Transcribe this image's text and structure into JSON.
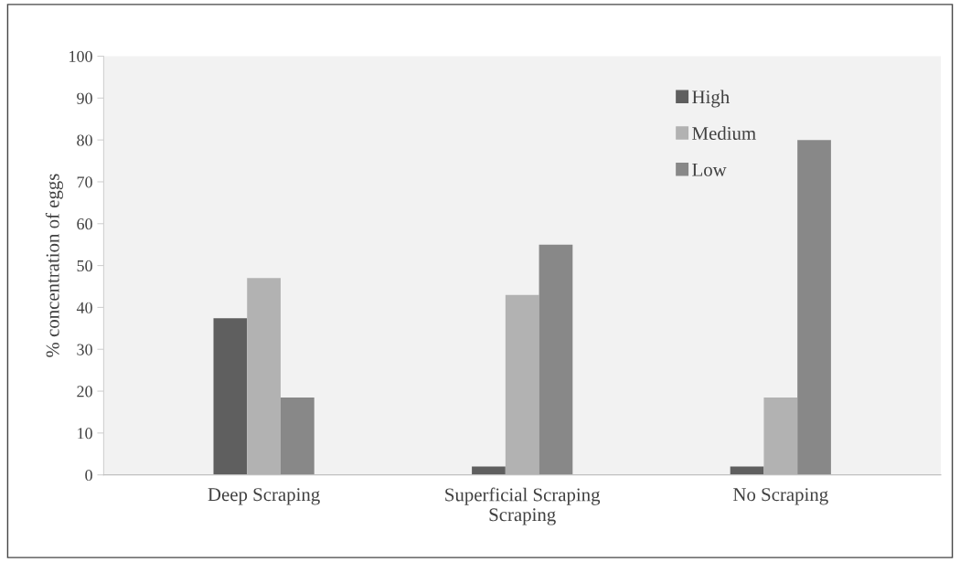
{
  "chart_data": {
    "type": "bar",
    "ylabel": "% concentration of eggs",
    "categories": [
      "Deep Scraping",
      "Superficial Scraping\nScraping",
      "No Scraping"
    ],
    "series": [
      {
        "name": "High",
        "color": "#5f5f5f",
        "values": [
          37.4,
          2,
          2
        ]
      },
      {
        "name": "Medium",
        "color": "#b2b2b2",
        "values": [
          47,
          43,
          18.5
        ]
      },
      {
        "name": "Low",
        "color": "#888888",
        "values": [
          18.5,
          55,
          80
        ]
      }
    ],
    "ylim": [
      0,
      100
    ],
    "yticks": [
      0,
      10,
      20,
      30,
      40,
      50,
      60,
      70,
      80,
      90,
      100
    ],
    "grid": false,
    "legend": "top right"
  }
}
